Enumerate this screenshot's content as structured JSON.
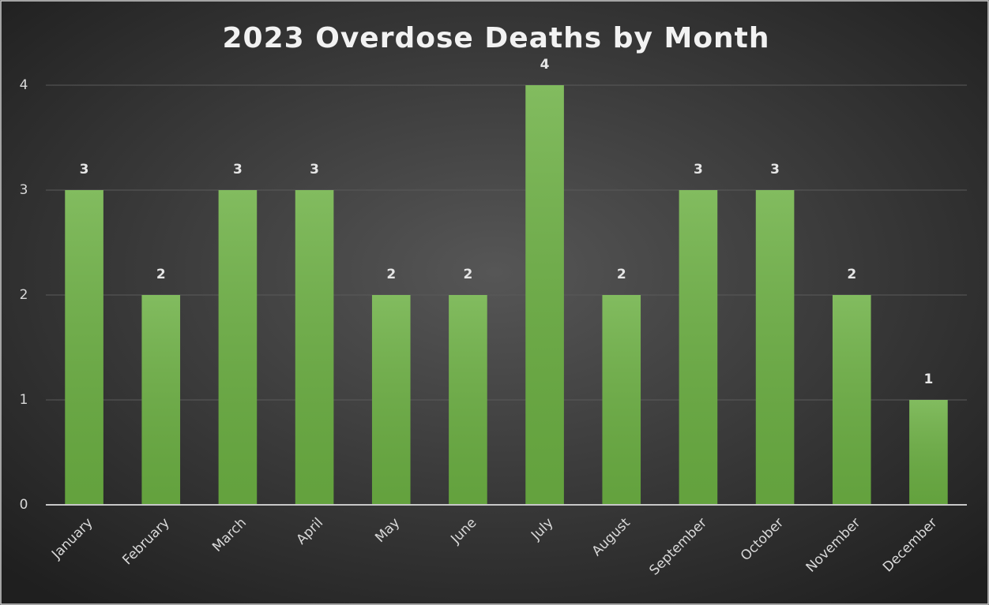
{
  "chart_data": {
    "type": "bar",
    "title": "2023 Overdose Deaths by Month",
    "categories": [
      "January",
      "February",
      "March",
      "April",
      "May",
      "June",
      "July",
      "August",
      "September",
      "October",
      "November",
      "December"
    ],
    "values": [
      3,
      2,
      3,
      3,
      2,
      2,
      4,
      2,
      3,
      3,
      2,
      1
    ],
    "color": "#6cb043",
    "ylim": [
      0,
      4
    ],
    "yticks": [
      0,
      1,
      2,
      3,
      4
    ],
    "grid": true
  }
}
